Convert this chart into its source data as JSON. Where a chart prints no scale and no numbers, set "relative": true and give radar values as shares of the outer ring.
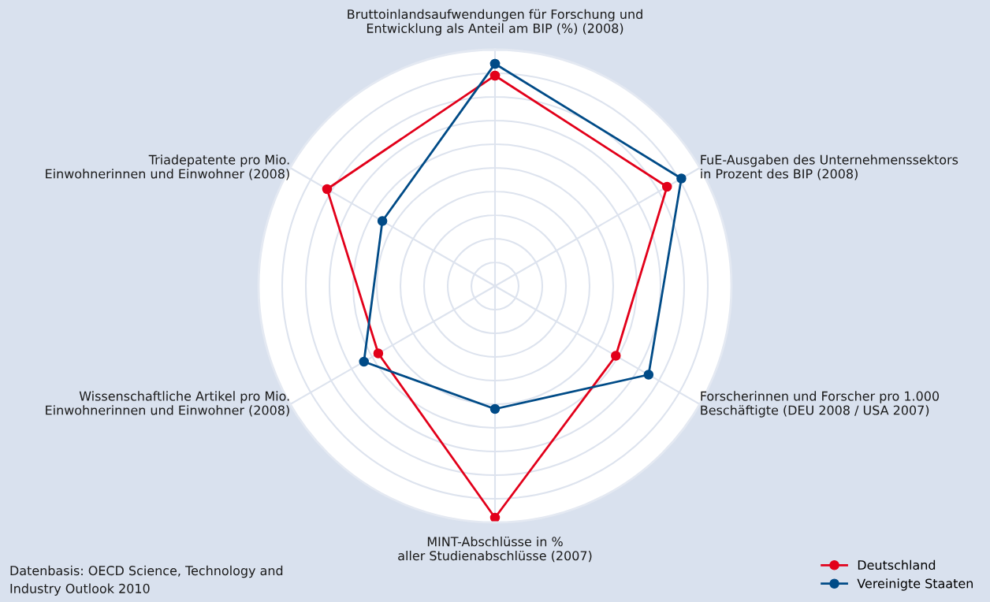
{
  "chart_data": {
    "type": "radar",
    "relative": true,
    "grid": true,
    "legend": "bottom right",
    "marker": "circle",
    "categories": [
      "Bruttoinlandsaufwendungen für Forschung und\nEntwicklung als Anteil am BIP (%) (2008)",
      "FuE-Ausgaben des Unternehmenssektors\nin Prozent des BIP (2008)",
      "Forscherinnen und Forscher pro 1.000\nBeschäftigte (DEU 2008 / USA 2007)",
      "MINT-Abschlüsse in %\naller Studienabschlüsse (2007)",
      "Wissenschaftliche Artikel pro Mio.\nEinwohnerinnen und Einwohner (2008)",
      "Triadepatente pro Mio.\nEinwohnerinnen und Einwohner (2008)"
    ],
    "series": [
      {
        "name": "Deutschland",
        "color": "#e2001a",
        "values": [
          0.89,
          0.84,
          0.59,
          0.98,
          0.57,
          0.82
        ]
      },
      {
        "name": "Vereinigte Staaten",
        "color": "#004b87",
        "values": [
          0.94,
          0.91,
          0.75,
          0.52,
          0.64,
          0.55
        ]
      }
    ],
    "annotations": [
      "Datenbasis: OECD Science, Technology and\nIndustry Outlook 2010"
    ]
  }
}
